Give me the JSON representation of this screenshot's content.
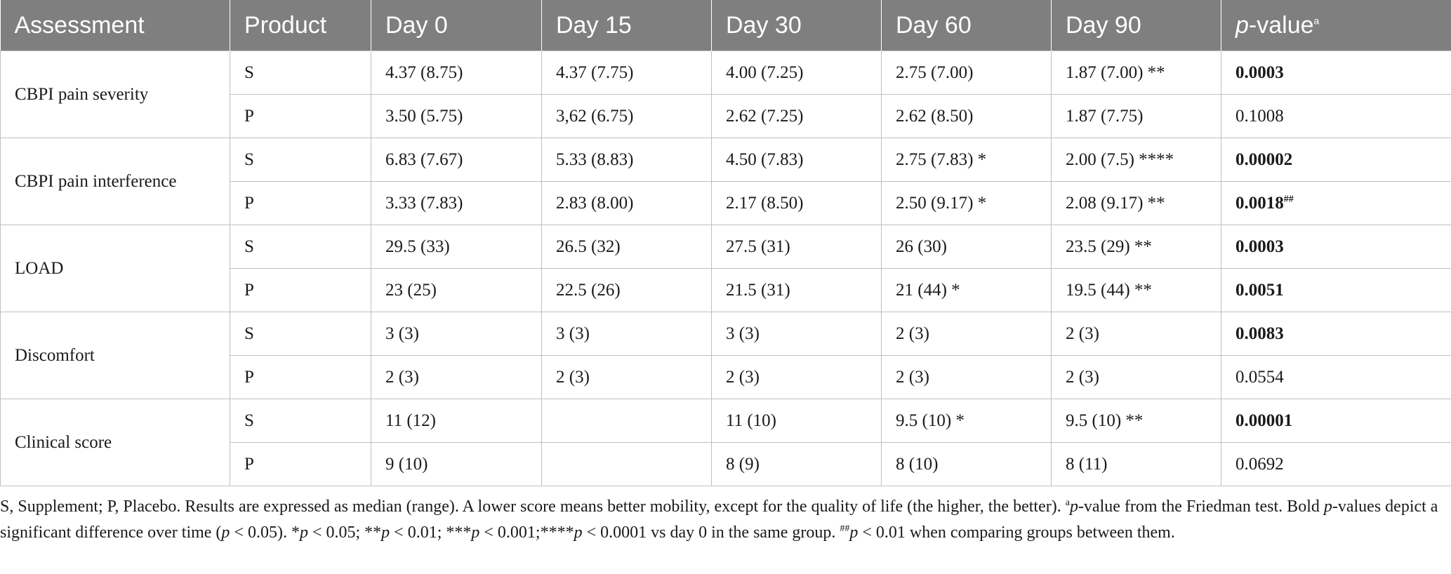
{
  "table": {
    "headers": {
      "assessment": "Assessment",
      "product": "Product",
      "day0": "Day 0",
      "day15": "Day 15",
      "day30": "Day 30",
      "day60": "Day 60",
      "day90": "Day 90",
      "pvalue_main": "p",
      "pvalue_rest": "-value",
      "pvalue_sup": "a"
    },
    "groups": [
      {
        "assessment": "CBPI pain severity",
        "rows": [
          {
            "product": "S",
            "day0": "4.37 (8.75)",
            "day15": "4.37 (7.75)",
            "day30": "4.00 (7.25)",
            "day60": "2.75 (7.00)",
            "day90": "1.87 (7.00) **",
            "pvalue": "0.0003",
            "pvalue_sup": ""
          },
          {
            "product": "P",
            "day0": "3.50 (5.75)",
            "day15": "3,62 (6.75)",
            "day30": "2.62 (7.25)",
            "day60": "2.62 (8.50)",
            "day90": "1.87 (7.75)",
            "pvalue": "0.1008",
            "pvalue_sup": ""
          }
        ]
      },
      {
        "assessment": "CBPI pain interference",
        "rows": [
          {
            "product": "S",
            "day0": "6.83 (7.67)",
            "day15": "5.33 (8.83)",
            "day30": "4.50 (7.83)",
            "day60": "2.75 (7.83) *",
            "day90": "2.00 (7.5) ****",
            "pvalue": "0.00002",
            "pvalue_sup": ""
          },
          {
            "product": "P",
            "day0": "3.33 (7.83)",
            "day15": "2.83 (8.00)",
            "day30": "2.17 (8.50)",
            "day60": "2.50 (9.17) *",
            "day90": "2.08 (9.17) **",
            "pvalue": "0.0018",
            "pvalue_sup": "##"
          }
        ]
      },
      {
        "assessment": "LOAD",
        "rows": [
          {
            "product": "S",
            "day0": "29.5 (33)",
            "day15": "26.5 (32)",
            "day30": "27.5 (31)",
            "day60": "26 (30)",
            "day90": "23.5 (29) **",
            "pvalue": "0.0003",
            "pvalue_sup": ""
          },
          {
            "product": "P",
            "day0": "23 (25)",
            "day15": "22.5 (26)",
            "day30": "21.5 (31)",
            "day60": "21 (44) *",
            "day90": "19.5 (44) **",
            "pvalue": "0.0051",
            "pvalue_sup": ""
          }
        ]
      },
      {
        "assessment": "Discomfort",
        "rows": [
          {
            "product": "S",
            "day0": "3 (3)",
            "day15": "3 (3)",
            "day30": "3 (3)",
            "day60": "2 (3)",
            "day90": "2 (3)",
            "pvalue": "0.0083",
            "pvalue_sup": ""
          },
          {
            "product": "P",
            "day0": "2 (3)",
            "day15": "2 (3)",
            "day30": "2 (3)",
            "day60": "2 (3)",
            "day90": "2 (3)",
            "pvalue": "0.0554",
            "pvalue_sup": ""
          }
        ]
      },
      {
        "assessment": "Clinical score",
        "rows": [
          {
            "product": "S",
            "day0": "11 (12)",
            "day15": "",
            "day30": "11 (10)",
            "day60": "9.5 (10) *",
            "day90": "9.5 (10) **",
            "pvalue": "0.00001",
            "pvalue_sup": ""
          },
          {
            "product": "P",
            "day0": "9 (10)",
            "day15": "",
            "day30": "8 (9)",
            "day60": "8 (10)",
            "day90": "8 (11)",
            "pvalue": "0.0692",
            "pvalue_sup": ""
          }
        ]
      }
    ]
  },
  "footnote": {
    "part1": "S, Supplement; P, Placebo. Results are expressed as median (range). A lower score means better mobility, except for the quality of life (the higher, the better). ",
    "sup_a": "a",
    "p1": "p",
    "part2": "-value from the Friedman test. Bold ",
    "p2": "p",
    "part3": "-values depict a significant difference over time (",
    "p3": "p",
    "part4": " < 0.05). *",
    "p4": "p",
    "part5": " < 0.05; **",
    "p5": "p",
    "part6": " < 0.01; ***",
    "p6": "p",
    "part7": " < 0.001;****",
    "p7": "p",
    "part8": " < 0.0001 vs day 0 in the same group. ",
    "sup_hash": "##",
    "p8": "p",
    "part9": " < 0.01 when comparing groups between them."
  }
}
